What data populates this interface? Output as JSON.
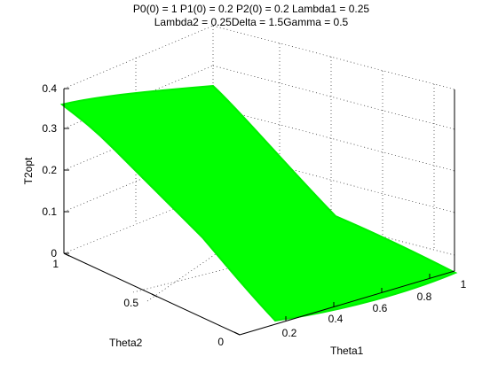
{
  "chart_data": {
    "type": "surface",
    "title": [
      "P0(0) = 1 P1(0) = 0.2 P2(0) = 0.2 Lambda1 = 0.25",
      "Lambda2 = 0.25Delta = 1.5Gamma = 0.5"
    ],
    "xlabel": "Theta1",
    "ylabel": "Theta2",
    "zlabel": "T2opt",
    "xlim": [
      0.1,
      1
    ],
    "ylim": [
      0,
      1
    ],
    "zlim": [
      0,
      0.4
    ],
    "xticks": [
      "0.2",
      "0.4",
      "0.6",
      "0.8",
      "1"
    ],
    "yticks": [
      "0",
      "0.5",
      "1"
    ],
    "zticks": [
      "0",
      "0.1",
      "0.2",
      "0.3",
      "0.4"
    ],
    "grid": true,
    "surface_color": "#00ff00",
    "surface_edges": [
      {
        "corner": "theta1=0.1,theta2=1",
        "t2opt": 0.36
      },
      {
        "corner": "theta1=1,theta2=1",
        "t2opt": 0.0
      },
      {
        "corner": "theta1=1,theta2=0",
        "t2opt": 0.0
      },
      {
        "corner": "theta1=0.1,theta2=0",
        "t2opt": 0.0
      }
    ],
    "approx_profile_theta2_1": [
      {
        "theta1": 0.1,
        "t2opt": 0.36
      },
      {
        "theta1": 0.2,
        "t2opt": 0.37
      },
      {
        "theta1": 0.3,
        "t2opt": 0.34
      },
      {
        "theta1": 0.4,
        "t2opt": 0.27
      },
      {
        "theta1": 0.5,
        "t2opt": 0.19
      },
      {
        "theta1": 0.6,
        "t2opt": 0.12
      },
      {
        "theta1": 0.7,
        "t2opt": 0.07
      },
      {
        "theta1": 0.8,
        "t2opt": 0.04
      },
      {
        "theta1": 0.9,
        "t2opt": 0.02
      },
      {
        "theta1": 1.0,
        "t2opt": 0.0
      }
    ]
  }
}
